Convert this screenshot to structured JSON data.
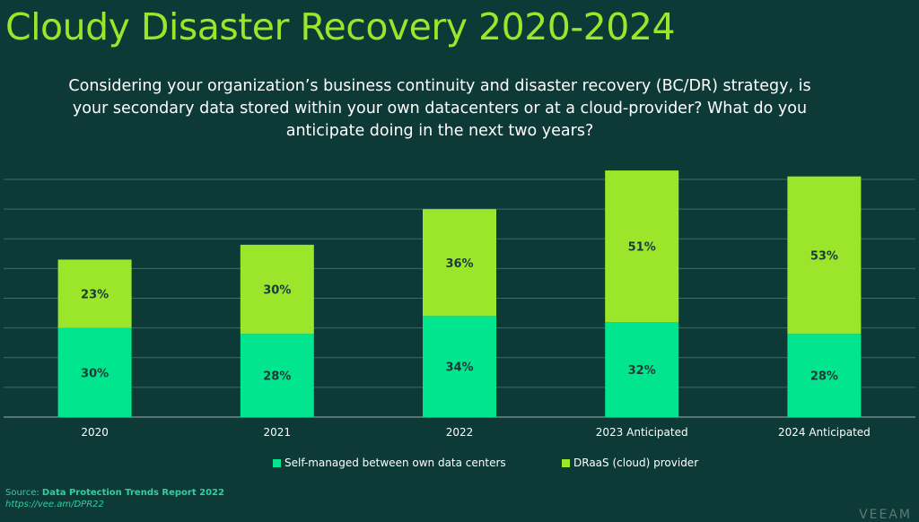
{
  "title": "Cloudy Disaster Recovery 2020-2024",
  "question": "Considering your organization’s business continuity and disaster recovery (BC/DR) strategy, is your secondary data stored within your own datacenters or at a cloud-provider?  What do you anticipate doing in the next two years?",
  "source": {
    "prefix": "Source: ",
    "report": "Data Protection Trends Report 2022",
    "url": "https://vee.am/DPR22"
  },
  "logo": "VEEAM",
  "colors": {
    "background": "#0d3a37",
    "self_managed": "#00e58e",
    "draas": "#9be52a",
    "gridline": "#3d6b67"
  },
  "chart_data": {
    "type": "bar",
    "stacked": true,
    "categories": [
      "2020",
      "2021",
      "2022",
      "2023 Anticipated",
      "2024 Anticipated"
    ],
    "series": [
      {
        "name": "Self-managed between own data centers",
        "values": [
          30,
          28,
          34,
          32,
          28
        ],
        "labels": [
          "30%",
          "28%",
          "34%",
          "32%",
          "28%"
        ]
      },
      {
        "name": "DRaaS (cloud) provider",
        "values": [
          23,
          30,
          36,
          51,
          53
        ],
        "labels": [
          "23%",
          "30%",
          "36%",
          "51%",
          "53%"
        ]
      }
    ],
    "ylim": [
      0,
      80
    ],
    "grid": true,
    "legend": "bottom"
  }
}
